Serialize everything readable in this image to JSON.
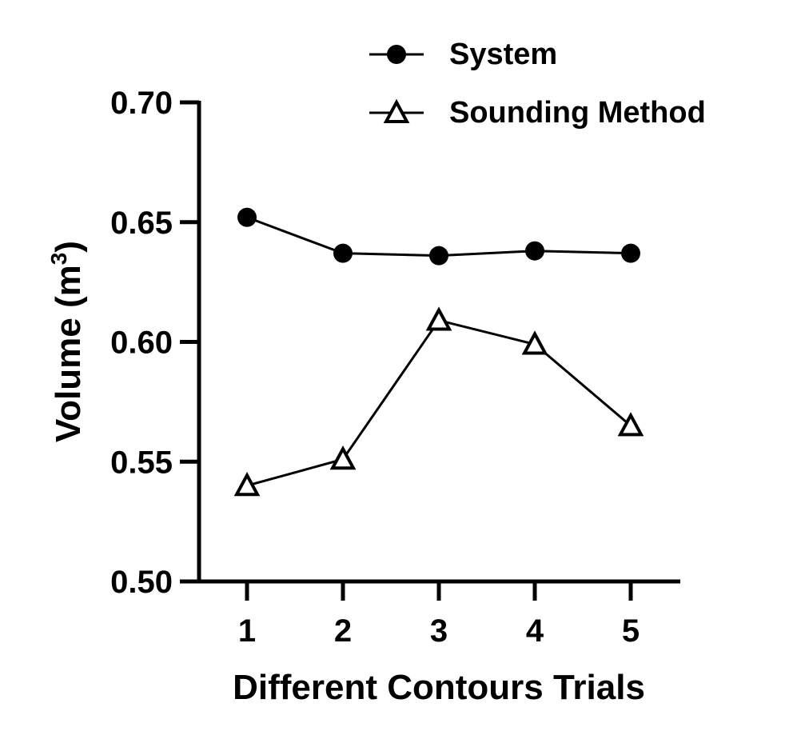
{
  "chart_data": {
    "type": "line",
    "title": "",
    "xlabel": "Different Contours Trials",
    "ylabel": {
      "text": "Volume (m",
      "superscript": "3",
      "suffix": ")"
    },
    "categories": [
      "1",
      "2",
      "3",
      "4",
      "5"
    ],
    "x": [
      1,
      2,
      3,
      4,
      5
    ],
    "xlim": [
      0.5,
      5.5
    ],
    "ylim": [
      0.5,
      0.7
    ],
    "yticks": [
      0.5,
      0.55,
      0.6,
      0.65,
      0.7
    ],
    "ytick_labels": [
      "0.50",
      "0.55",
      "0.60",
      "0.65",
      "0.70"
    ],
    "grid": false,
    "legend_position": "top-right",
    "series": [
      {
        "name": "System",
        "marker": "filled-circle",
        "color": "#000000",
        "values": [
          0.652,
          0.637,
          0.636,
          0.638,
          0.637
        ]
      },
      {
        "name": "Sounding Method",
        "marker": "open-triangle",
        "color": "#000000",
        "values": [
          0.54,
          0.551,
          0.609,
          0.599,
          0.565
        ]
      }
    ]
  }
}
